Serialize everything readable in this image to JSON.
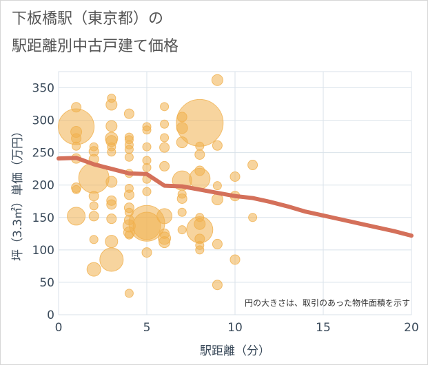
{
  "title_line1": "下板橋駅（東京都）の",
  "title_line2": "駅距離別中古戸建て価格",
  "note": "円の大きさは、取引のあった物件面積を示す",
  "colors": {
    "bubble": "#f0b04e",
    "line": "#d4705a",
    "grid": "#d9e2ea",
    "plot_bg": "#ffffff"
  },
  "chart_data": {
    "type": "scatter",
    "xlabel": "駅距離（分）",
    "ylabel": "坪（3.3㎡）単価（万円）",
    "xlim": [
      0,
      20
    ],
    "ylim": [
      0,
      375
    ],
    "xticks": [
      0,
      5,
      10,
      15,
      20
    ],
    "yticks": [
      0,
      50,
      100,
      150,
      200,
      250,
      300,
      350
    ],
    "bubbles": [
      {
        "x": 1,
        "y": 320,
        "r": 7
      },
      {
        "x": 1,
        "y": 290,
        "r": 26
      },
      {
        "x": 1,
        "y": 282,
        "r": 8
      },
      {
        "x": 1,
        "y": 272,
        "r": 7
      },
      {
        "x": 1,
        "y": 260,
        "r": 6
      },
      {
        "x": 1,
        "y": 241,
        "r": 7
      },
      {
        "x": 1,
        "y": 196,
        "r": 7
      },
      {
        "x": 1,
        "y": 193,
        "r": 6
      },
      {
        "x": 1,
        "y": 152,
        "r": 13
      },
      {
        "x": 2,
        "y": 259,
        "r": 6
      },
      {
        "x": 2,
        "y": 252,
        "r": 7
      },
      {
        "x": 2,
        "y": 240,
        "r": 7
      },
      {
        "x": 2,
        "y": 211,
        "r": 22
      },
      {
        "x": 2,
        "y": 183,
        "r": 7
      },
      {
        "x": 2,
        "y": 168,
        "r": 6
      },
      {
        "x": 2,
        "y": 152,
        "r": 7
      },
      {
        "x": 2,
        "y": 116,
        "r": 6
      },
      {
        "x": 2,
        "y": 70,
        "r": 10
      },
      {
        "x": 3,
        "y": 334,
        "r": 6
      },
      {
        "x": 3,
        "y": 324,
        "r": 8
      },
      {
        "x": 3,
        "y": 291,
        "r": 8
      },
      {
        "x": 3,
        "y": 272,
        "r": 9
      },
      {
        "x": 3,
        "y": 268,
        "r": 8
      },
      {
        "x": 3,
        "y": 259,
        "r": 6
      },
      {
        "x": 3,
        "y": 251,
        "r": 6
      },
      {
        "x": 3,
        "y": 205,
        "r": 8
      },
      {
        "x": 3,
        "y": 176,
        "r": 7
      },
      {
        "x": 3,
        "y": 170,
        "r": 7
      },
      {
        "x": 3,
        "y": 148,
        "r": 7
      },
      {
        "x": 3,
        "y": 113,
        "r": 9
      },
      {
        "x": 3,
        "y": 85,
        "r": 17
      },
      {
        "x": 4,
        "y": 310,
        "r": 7
      },
      {
        "x": 4,
        "y": 274,
        "r": 6
      },
      {
        "x": 4,
        "y": 270,
        "r": 6
      },
      {
        "x": 4,
        "y": 262,
        "r": 6
      },
      {
        "x": 4,
        "y": 255,
        "r": 6
      },
      {
        "x": 4,
        "y": 243,
        "r": 6
      },
      {
        "x": 4,
        "y": 218,
        "r": 6
      },
      {
        "x": 4,
        "y": 195,
        "r": 6
      },
      {
        "x": 4,
        "y": 185,
        "r": 7
      },
      {
        "x": 4,
        "y": 165,
        "r": 7
      },
      {
        "x": 4,
        "y": 158,
        "r": 6
      },
      {
        "x": 4,
        "y": 146,
        "r": 7
      },
      {
        "x": 4,
        "y": 137,
        "r": 9
      },
      {
        "x": 4,
        "y": 127,
        "r": 8
      },
      {
        "x": 4,
        "y": 123,
        "r": 6
      },
      {
        "x": 4,
        "y": 33,
        "r": 6
      },
      {
        "x": 5,
        "y": 290,
        "r": 6
      },
      {
        "x": 5,
        "y": 285,
        "r": 6
      },
      {
        "x": 5,
        "y": 259,
        "r": 6
      },
      {
        "x": 5,
        "y": 238,
        "r": 6
      },
      {
        "x": 5,
        "y": 227,
        "r": 6
      },
      {
        "x": 5,
        "y": 209,
        "r": 6
      },
      {
        "x": 5,
        "y": 190,
        "r": 6
      },
      {
        "x": 5,
        "y": 141,
        "r": 26
      },
      {
        "x": 5,
        "y": 137,
        "r": 20
      },
      {
        "x": 5,
        "y": 96,
        "r": 7
      },
      {
        "x": 6,
        "y": 321,
        "r": 6
      },
      {
        "x": 6,
        "y": 294,
        "r": 6
      },
      {
        "x": 6,
        "y": 273,
        "r": 6
      },
      {
        "x": 6,
        "y": 258,
        "r": 7
      },
      {
        "x": 6,
        "y": 229,
        "r": 7
      },
      {
        "x": 6,
        "y": 152,
        "r": 11
      },
      {
        "x": 6,
        "y": 125,
        "r": 7
      },
      {
        "x": 6,
        "y": 118,
        "r": 9
      },
      {
        "x": 6,
        "y": 112,
        "r": 8
      },
      {
        "x": 7,
        "y": 305,
        "r": 7
      },
      {
        "x": 7,
        "y": 288,
        "r": 8
      },
      {
        "x": 7,
        "y": 266,
        "r": 8
      },
      {
        "x": 7,
        "y": 207,
        "r": 14
      },
      {
        "x": 7,
        "y": 186,
        "r": 6
      },
      {
        "x": 7,
        "y": 179,
        "r": 7
      },
      {
        "x": 7,
        "y": 158,
        "r": 6
      },
      {
        "x": 7,
        "y": 131,
        "r": 6
      },
      {
        "x": 8,
        "y": 296,
        "r": 34
      },
      {
        "x": 8,
        "y": 260,
        "r": 6
      },
      {
        "x": 8,
        "y": 247,
        "r": 7
      },
      {
        "x": 8,
        "y": 222,
        "r": 7
      },
      {
        "x": 8,
        "y": 210,
        "r": 15
      },
      {
        "x": 8,
        "y": 150,
        "r": 6
      },
      {
        "x": 8,
        "y": 140,
        "r": 8
      },
      {
        "x": 8,
        "y": 131,
        "r": 19
      },
      {
        "x": 8,
        "y": 117,
        "r": 7
      },
      {
        "x": 8,
        "y": 107,
        "r": 6
      },
      {
        "x": 8,
        "y": 100,
        "r": 6
      },
      {
        "x": 9,
        "y": 362,
        "r": 8
      },
      {
        "x": 9,
        "y": 261,
        "r": 7
      },
      {
        "x": 9,
        "y": 199,
        "r": 6
      },
      {
        "x": 9,
        "y": 178,
        "r": 8
      },
      {
        "x": 9,
        "y": 109,
        "r": 7
      },
      {
        "x": 9,
        "y": 46,
        "r": 7
      },
      {
        "x": 10,
        "y": 213,
        "r": 7
      },
      {
        "x": 10,
        "y": 183,
        "r": 7
      },
      {
        "x": 10,
        "y": 85,
        "r": 7
      },
      {
        "x": 11,
        "y": 231,
        "r": 7
      },
      {
        "x": 11,
        "y": 150,
        "r": 6
      }
    ],
    "line": {
      "x": [
        0,
        1,
        2,
        3,
        4,
        5,
        6,
        7,
        8,
        9,
        10,
        11,
        12,
        13,
        14,
        15,
        16,
        17,
        18,
        19,
        20
      ],
      "y": [
        241,
        242,
        232,
        225,
        218,
        217,
        199,
        198,
        193,
        188,
        183,
        180,
        174,
        167,
        159,
        153,
        147,
        141,
        135,
        129,
        122
      ]
    }
  }
}
